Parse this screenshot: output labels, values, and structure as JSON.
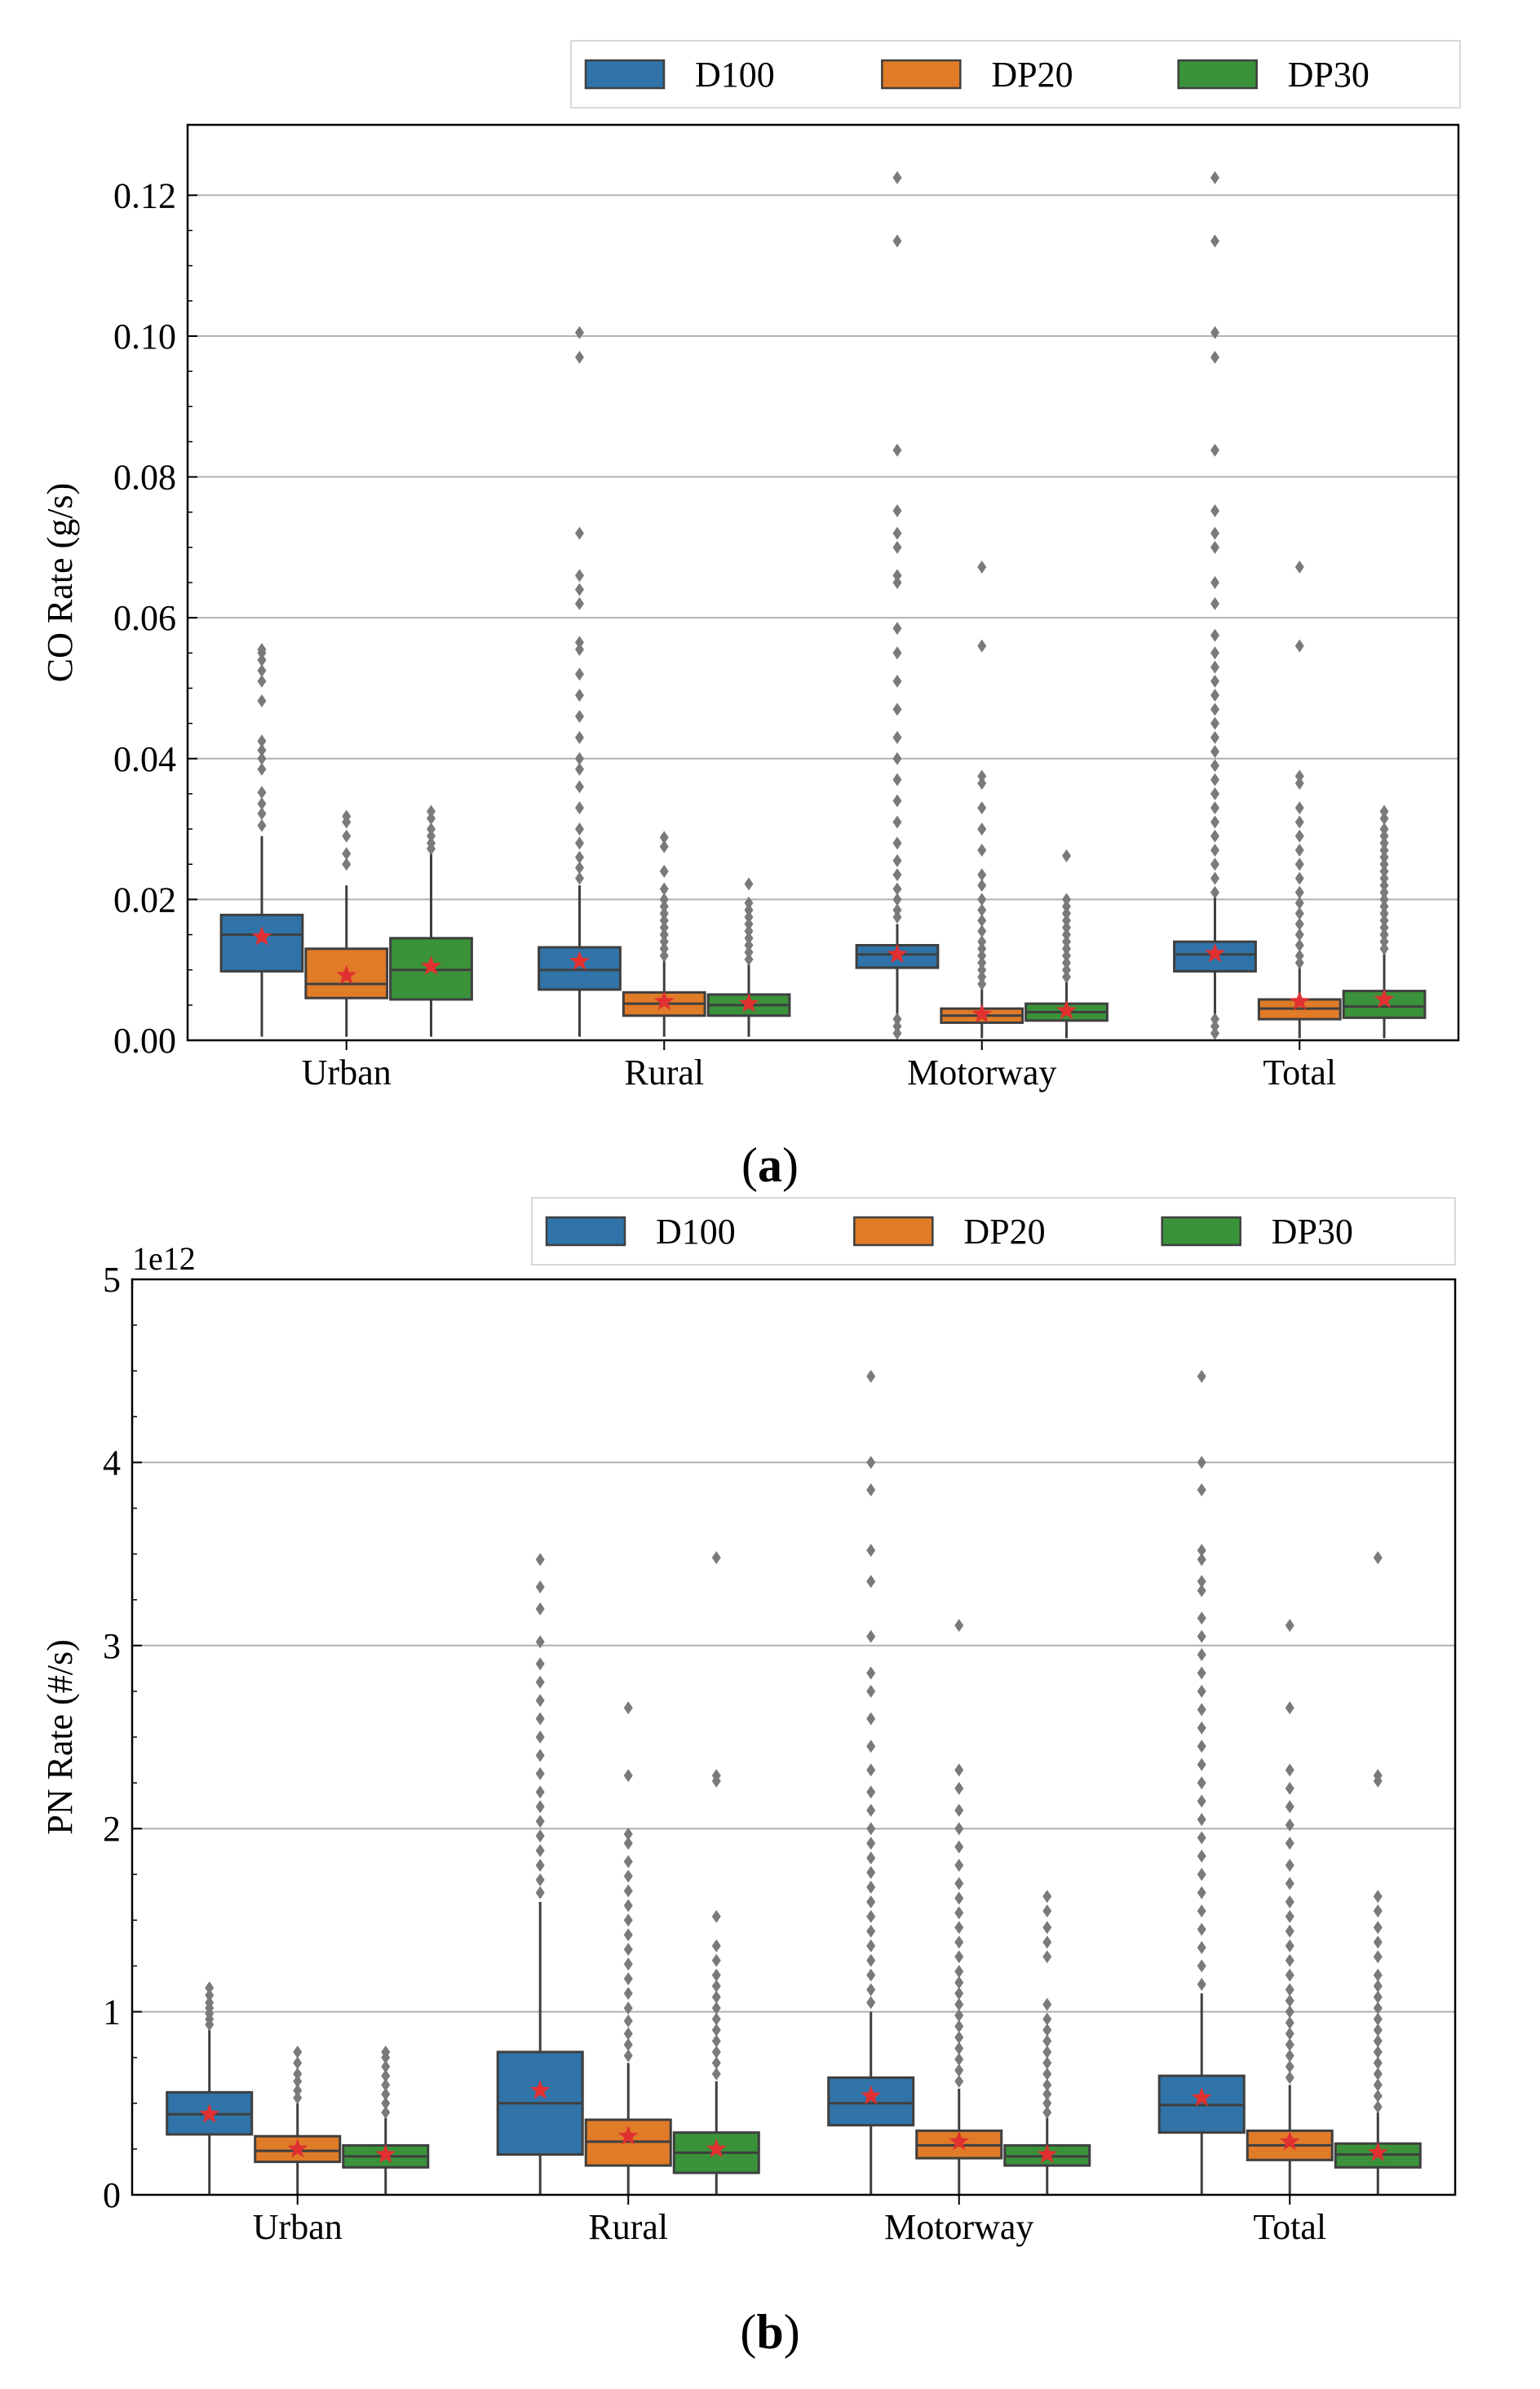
{
  "chart_data": [
    {
      "type": "box",
      "panel": "a",
      "ylabel": "CO Rate (g/s)",
      "xlabel": "",
      "ylim": [
        0,
        0.13
      ],
      "yticks": [
        0.0,
        0.02,
        0.04,
        0.06,
        0.08,
        0.1,
        0.12
      ],
      "ytick_labels": [
        "0.00",
        "0.02",
        "0.04",
        "0.06",
        "0.08",
        "0.10",
        "0.12"
      ],
      "grid": "horizontal",
      "legend_position": "top, above plot",
      "categories": [
        "Urban",
        "Rural",
        "Motorway",
        "Total"
      ],
      "series": [
        {
          "name": "D100",
          "color": "#2f73a8",
          "boxes": [
            {
              "q1": 0.0098,
              "median": 0.015,
              "q3": 0.0178,
              "whisker_low": 0.0005,
              "whisker_high": 0.029,
              "mean": 0.0147,
              "outliers": [
                0.0305,
                0.0322,
                0.0336,
                0.0352,
                0.0385,
                0.04,
                0.0412,
                0.0425,
                0.0482,
                0.051,
                0.0525,
                0.054,
                0.055,
                0.0555
              ]
            },
            {
              "q1": 0.0072,
              "median": 0.01,
              "q3": 0.0132,
              "whisker_low": 0.0005,
              "whisker_high": 0.022,
              "mean": 0.0112,
              "outliers": [
                0.023,
                0.0245,
                0.026,
                0.028,
                0.03,
                0.033,
                0.036,
                0.0385,
                0.04,
                0.043,
                0.046,
                0.049,
                0.052,
                0.0555,
                0.0565,
                0.062,
                0.064,
                0.066,
                0.072,
                0.097,
                0.1005
              ]
            },
            {
              "q1": 0.0103,
              "median": 0.0122,
              "q3": 0.0135,
              "whisker_low": 0.0005,
              "whisker_high": 0.0165,
              "mean": 0.0122,
              "outliers": [
                0.0175,
                0.0185,
                0.02,
                0.0215,
                0.0235,
                0.0255,
                0.028,
                0.031,
                0.034,
                0.037,
                0.04,
                0.043,
                0.047,
                0.051,
                0.055,
                0.0585,
                0.065,
                0.066,
                0.07,
                0.072,
                0.0752,
                0.0838,
                0.1135,
                0.1225,
                0.003,
                0.002,
                0.001
              ]
            },
            {
              "q1": 0.0098,
              "median": 0.0122,
              "q3": 0.014,
              "whisker_low": 0.0005,
              "whisker_high": 0.0205,
              "mean": 0.0123,
              "outliers": [
                0.021,
                0.023,
                0.025,
                0.027,
                0.029,
                0.031,
                0.033,
                0.035,
                0.037,
                0.039,
                0.041,
                0.043,
                0.045,
                0.047,
                0.049,
                0.051,
                0.053,
                0.055,
                0.0575,
                0.062,
                0.065,
                0.07,
                0.072,
                0.0752,
                0.0838,
                0.097,
                0.1005,
                0.1135,
                0.1225,
                0.003,
                0.002,
                0.001
              ]
            }
          ]
        },
        {
          "name": "DP20",
          "color": "#e07b28",
          "boxes": [
            {
              "q1": 0.006,
              "median": 0.008,
              "q3": 0.013,
              "whisker_low": 0.0005,
              "whisker_high": 0.022,
              "mean": 0.0092,
              "outliers": [
                0.025,
                0.0265,
                0.029,
                0.031,
                0.0318
              ]
            },
            {
              "q1": 0.0035,
              "median": 0.0052,
              "q3": 0.0068,
              "whisker_low": 0.0005,
              "whisker_high": 0.0115,
              "mean": 0.0055,
              "outliers": [
                0.012,
                0.013,
                0.014,
                0.015,
                0.016,
                0.017,
                0.018,
                0.019,
                0.02,
                0.0215,
                0.024,
                0.0275,
                0.0288
              ]
            },
            {
              "q1": 0.0025,
              "median": 0.0035,
              "q3": 0.0045,
              "whisker_low": 0.0003,
              "whisker_high": 0.0075,
              "mean": 0.0037,
              "outliers": [
                0.008,
                0.009,
                0.01,
                0.011,
                0.012,
                0.013,
                0.014,
                0.0155,
                0.017,
                0.0185,
                0.02,
                0.022,
                0.0235,
                0.027,
                0.03,
                0.033,
                0.0365,
                0.0375,
                0.056,
                0.0672
              ]
            },
            {
              "q1": 0.003,
              "median": 0.0045,
              "q3": 0.0058,
              "whisker_low": 0.0003,
              "whisker_high": 0.0105,
              "mean": 0.0055,
              "outliers": [
                0.011,
                0.012,
                0.0135,
                0.015,
                0.0165,
                0.018,
                0.0195,
                0.021,
                0.023,
                0.025,
                0.027,
                0.029,
                0.031,
                0.033,
                0.0365,
                0.0375,
                0.056,
                0.0672
              ]
            }
          ]
        },
        {
          "name": "DP30",
          "color": "#3a923a",
          "boxes": [
            {
              "q1": 0.0058,
              "median": 0.01,
              "q3": 0.0145,
              "whisker_low": 0.0005,
              "whisker_high": 0.0265,
              "mean": 0.0105,
              "outliers": [
                0.0272,
                0.028,
                0.029,
                0.03,
                0.0315,
                0.0325
              ]
            },
            {
              "q1": 0.0035,
              "median": 0.005,
              "q3": 0.0065,
              "whisker_low": 0.0005,
              "whisker_high": 0.011,
              "mean": 0.0052,
              "outliers": [
                0.0115,
                0.0125,
                0.0135,
                0.0145,
                0.0155,
                0.0165,
                0.0175,
                0.0185,
                0.0195,
                0.0222
              ]
            },
            {
              "q1": 0.0028,
              "median": 0.004,
              "q3": 0.0052,
              "whisker_low": 0.0003,
              "whisker_high": 0.0085,
              "mean": 0.0042,
              "outliers": [
                0.009,
                0.01,
                0.011,
                0.012,
                0.013,
                0.014,
                0.015,
                0.016,
                0.017,
                0.018,
                0.019,
                0.02,
                0.0262
              ]
            },
            {
              "q1": 0.0032,
              "median": 0.0048,
              "q3": 0.007,
              "whisker_low": 0.0003,
              "whisker_high": 0.0125,
              "mean": 0.0058,
              "outliers": [
                0.013,
                0.014,
                0.015,
                0.016,
                0.017,
                0.018,
                0.019,
                0.02,
                0.021,
                0.022,
                0.023,
                0.024,
                0.025,
                0.026,
                0.027,
                0.028,
                0.029,
                0.03,
                0.0315,
                0.0325
              ]
            }
          ]
        }
      ]
    },
    {
      "type": "box",
      "panel": "b",
      "ylabel": "PN Rate (#/s)",
      "xlabel": "",
      "scale_label": "1e12",
      "ylim": [
        0,
        5
      ],
      "yticks": [
        0,
        1,
        2,
        3,
        4,
        5
      ],
      "ytick_labels": [
        "0",
        "1",
        "2",
        "3",
        "4",
        "5"
      ],
      "grid": "horizontal",
      "legend_position": "top, above plot",
      "categories": [
        "Urban",
        "Rural",
        "Motorway",
        "Total"
      ],
      "series": [
        {
          "name": "D100",
          "color": "#2f73a8",
          "boxes": [
            {
              "q1": 0.33,
              "median": 0.44,
              "q3": 0.56,
              "whisker_low": 0.0,
              "whisker_high": 0.9,
              "mean": 0.44,
              "outliers": [
                0.93,
                0.96,
                0.99,
                1.02,
                1.05,
                1.09,
                1.13
              ]
            },
            {
              "q1": 0.22,
              "median": 0.5,
              "q3": 0.78,
              "whisker_low": 0.0,
              "whisker_high": 1.6,
              "mean": 0.57,
              "outliers": [
                1.65,
                1.72,
                1.8,
                1.88,
                1.96,
                2.04,
                2.12,
                2.2,
                2.3,
                2.4,
                2.5,
                2.6,
                2.7,
                2.8,
                2.9,
                3.02,
                3.2,
                3.32,
                3.47
              ]
            },
            {
              "q1": 0.38,
              "median": 0.5,
              "q3": 0.64,
              "whisker_low": 0.0,
              "whisker_high": 1.0,
              "mean": 0.54,
              "outliers": [
                1.05,
                1.12,
                1.2,
                1.28,
                1.36,
                1.44,
                1.52,
                1.6,
                1.68,
                1.76,
                1.84,
                1.92,
                2.0,
                2.1,
                2.2,
                2.32,
                2.45,
                2.6,
                2.75,
                2.85,
                3.05,
                3.35,
                3.52,
                3.85,
                4.0,
                4.47
              ]
            },
            {
              "q1": 0.34,
              "median": 0.49,
              "q3": 0.65,
              "whisker_low": 0.0,
              "whisker_high": 1.1,
              "mean": 0.53,
              "outliers": [
                1.15,
                1.25,
                1.35,
                1.45,
                1.55,
                1.65,
                1.75,
                1.85,
                1.95,
                2.05,
                2.15,
                2.25,
                2.35,
                2.45,
                2.55,
                2.65,
                2.75,
                2.85,
                2.95,
                3.05,
                3.15,
                3.3,
                3.35,
                3.47,
                3.52,
                3.85,
                4.0,
                4.47
              ]
            }
          ]
        },
        {
          "name": "DP20",
          "color": "#e07b28",
          "boxes": [
            {
              "q1": 0.18,
              "median": 0.24,
              "q3": 0.32,
              "whisker_low": 0.0,
              "whisker_high": 0.5,
              "mean": 0.25,
              "outliers": [
                0.53,
                0.57,
                0.62,
                0.66,
                0.72,
                0.78
              ]
            },
            {
              "q1": 0.16,
              "median": 0.29,
              "q3": 0.41,
              "whisker_low": 0.0,
              "whisker_high": 0.72,
              "mean": 0.32,
              "outliers": [
                0.76,
                0.82,
                0.88,
                0.95,
                1.02,
                1.1,
                1.18,
                1.26,
                1.34,
                1.42,
                1.5,
                1.58,
                1.66,
                1.74,
                1.82,
                1.92,
                1.97,
                2.29,
                2.66
              ]
            },
            {
              "q1": 0.2,
              "median": 0.27,
              "q3": 0.35,
              "whisker_low": 0.0,
              "whisker_high": 0.58,
              "mean": 0.29,
              "outliers": [
                0.62,
                0.68,
                0.74,
                0.8,
                0.86,
                0.92,
                0.98,
                1.04,
                1.1,
                1.16,
                1.22,
                1.3,
                1.38,
                1.46,
                1.54,
                1.62,
                1.7,
                1.8,
                1.9,
                2.0,
                2.1,
                2.22,
                2.32,
                3.11
              ]
            },
            {
              "q1": 0.19,
              "median": 0.27,
              "q3": 0.35,
              "whisker_low": 0.0,
              "whisker_high": 0.6,
              "mean": 0.29,
              "outliers": [
                0.64,
                0.7,
                0.76,
                0.82,
                0.88,
                0.94,
                1.0,
                1.06,
                1.12,
                1.2,
                1.28,
                1.36,
                1.44,
                1.52,
                1.6,
                1.7,
                1.8,
                1.92,
                2.02,
                2.12,
                2.22,
                2.32,
                2.66,
                3.11
              ]
            }
          ]
        },
        {
          "name": "DP30",
          "color": "#3a923a",
          "boxes": [
            {
              "q1": 0.15,
              "median": 0.21,
              "q3": 0.27,
              "whisker_low": 0.0,
              "whisker_high": 0.42,
              "mean": 0.22,
              "outliers": [
                0.45,
                0.5,
                0.55,
                0.6,
                0.65,
                0.7,
                0.75,
                0.78
              ]
            },
            {
              "q1": 0.12,
              "median": 0.23,
              "q3": 0.34,
              "whisker_low": 0.0,
              "whisker_high": 0.62,
              "mean": 0.25,
              "outliers": [
                0.66,
                0.72,
                0.78,
                0.84,
                0.9,
                0.96,
                1.02,
                1.08,
                1.14,
                1.2,
                1.28,
                1.36,
                1.52,
                2.26,
                2.29,
                3.48
              ]
            },
            {
              "q1": 0.16,
              "median": 0.21,
              "q3": 0.27,
              "whisker_low": 0.0,
              "whisker_high": 0.42,
              "mean": 0.22,
              "outliers": [
                0.45,
                0.5,
                0.55,
                0.6,
                0.66,
                0.72,
                0.78,
                0.84,
                0.9,
                0.96,
                1.04,
                1.3,
                1.38,
                1.46,
                1.55,
                1.63
              ]
            },
            {
              "q1": 0.15,
              "median": 0.22,
              "q3": 0.28,
              "whisker_low": 0.0,
              "whisker_high": 0.45,
              "mean": 0.23,
              "outliers": [
                0.48,
                0.54,
                0.6,
                0.66,
                0.72,
                0.78,
                0.84,
                0.9,
                0.96,
                1.02,
                1.08,
                1.14,
                1.2,
                1.3,
                1.38,
                1.46,
                1.55,
                1.63,
                2.26,
                2.29,
                3.48
              ]
            }
          ]
        }
      ]
    }
  ],
  "panel_labels": [
    {
      "open": "(",
      "letter": "a",
      "close": ")"
    },
    {
      "open": "(",
      "letter": "b",
      "close": ")"
    }
  ]
}
